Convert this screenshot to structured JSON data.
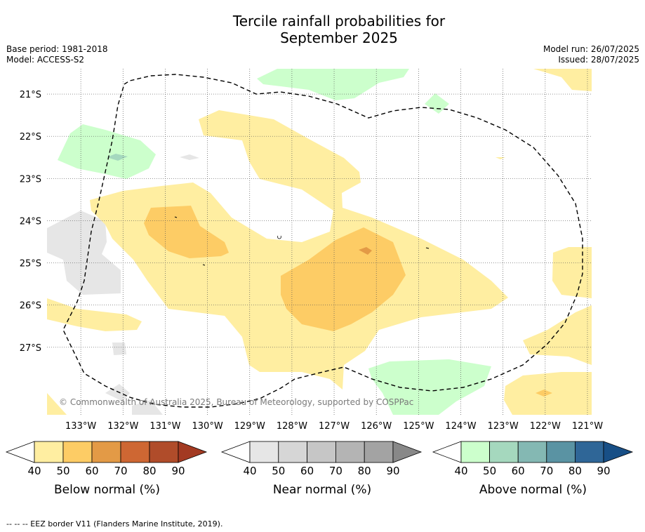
{
  "title": {
    "line1": "Tercile rainfall probabilities for",
    "line2": "September 2025"
  },
  "meta": {
    "base_period": "Base period: 1981-2018",
    "model": "Model: ACCESS-S2",
    "model_run": "Model run: 26/07/2025",
    "issued": "Issued: 28/07/2025"
  },
  "map": {
    "lat_labels": [
      "21°S",
      "22°S",
      "23°S",
      "24°S",
      "25°S",
      "26°S",
      "27°S"
    ],
    "lon_labels": [
      "133°W",
      "132°W",
      "131°W",
      "130°W",
      "129°W",
      "128°W",
      "127°W",
      "126°W",
      "125°W",
      "124°W",
      "123°W",
      "122°W",
      "121°W"
    ],
    "lat_values": [
      -21,
      -22,
      -23,
      -24,
      -25,
      -26,
      -27
    ],
    "lon_values": [
      -133,
      -132,
      -131,
      -130,
      -129,
      -128,
      -127,
      -126,
      -125,
      -124,
      -123,
      -122,
      -121
    ],
    "extent": {
      "lon_min": -133.8,
      "lon_max": -120.9,
      "lat_min": -28.6,
      "lat_max": -20.4
    },
    "copyright": "© Commonwealth of Australia 2025, Bureau of Meteorology, supported by COSPPac",
    "eez_style": "dashed",
    "grid": "dotted"
  },
  "colorbars": [
    {
      "label": "Below normal (%)",
      "ticks": [
        "40",
        "50",
        "60",
        "70",
        "80",
        "90"
      ],
      "colors": [
        "#ffeea1",
        "#fdcc65",
        "#e39a46",
        "#ce6733",
        "#b04c2a",
        "#a33a22"
      ]
    },
    {
      "label": "Near normal (%)",
      "ticks": [
        "40",
        "50",
        "60",
        "70",
        "80",
        "90"
      ],
      "colors": [
        "#e6e6e6",
        "#d6d6d6",
        "#c6c6c6",
        "#b4b4b4",
        "#a3a3a3",
        "#888888"
      ]
    },
    {
      "label": "Above normal (%)",
      "ticks": [
        "40",
        "50",
        "60",
        "70",
        "80",
        "90"
      ],
      "colors": [
        "#ccffcc",
        "#a5d8be",
        "#84b8b3",
        "#5a93a3",
        "#2f6697",
        "#184f86"
      ]
    }
  ],
  "footer": "--  --  -- EEZ border V11 (Flanders Marine Institute, 2019)."
}
